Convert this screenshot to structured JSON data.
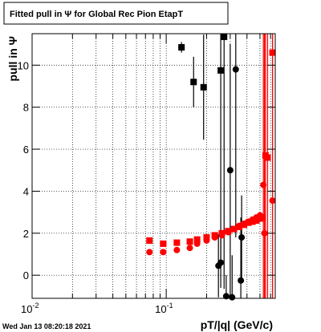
{
  "header": {
    "title": "Fitted pull in  Ψ  for Global Rec Pion EtapT"
  },
  "footer": {
    "timestamp": "Wed Jan 13 08:20:18 2021"
  },
  "chart_data": {
    "type": "scatter",
    "title": "Fitted pull in  Ψ  for Global Rec Pion EtapT",
    "xlabel": "pT/|q| (GeV/c)",
    "ylabel": "pull in  Ψ",
    "xscale": "log",
    "xlim": [
      0.01,
      0.65
    ],
    "ylim": [
      -1.1,
      11.5
    ],
    "grid": true,
    "x_tick_labels": [
      {
        "value": 0.01,
        "base": "10",
        "exp": "-2"
      },
      {
        "value": 0.1,
        "base": "10",
        "exp": "-1"
      }
    ],
    "y_ticks": [
      0,
      2,
      4,
      6,
      8,
      10
    ],
    "colors": {
      "black": "#000000",
      "red": "#ff0000"
    },
    "series": [
      {
        "marker": "square",
        "color": "#000000",
        "points": [
          {
            "x": 0.13,
            "y": 10.85,
            "yerr": 0.25,
            "xerr": 0.007
          },
          {
            "x": 0.16,
            "y": 9.2,
            "yerr": 1.2
          },
          {
            "x": 0.19,
            "y": 8.95,
            "yerr": 2.5
          },
          {
            "x": 0.255,
            "y": 9.75,
            "yerr": 9.0
          },
          {
            "x": 0.27,
            "y": 11.35,
            "yerr": 12.0
          }
        ]
      },
      {
        "marker": "circle",
        "color": "#000000",
        "points": [
          {
            "x": 0.245,
            "y": 0.45,
            "yerr": 1.5
          },
          {
            "x": 0.255,
            "y": 0.6,
            "yerr": 1.2
          },
          {
            "x": 0.28,
            "y": -1.0,
            "yerr": 1.0
          },
          {
            "x": 0.3,
            "y": 5.0,
            "yerr": 6.0
          },
          {
            "x": 0.31,
            "y": -1.05,
            "yerr": 2.0
          },
          {
            "x": 0.33,
            "y": 9.8,
            "yerr": 8.0
          },
          {
            "x": 0.36,
            "y": -0.25,
            "yerr": 3.0
          },
          {
            "x": 0.365,
            "y": 1.8,
            "yerr": 2.0
          }
        ]
      },
      {
        "marker": "square",
        "color": "#ff0000",
        "points": [
          {
            "x": 0.075,
            "y": 1.65
          },
          {
            "x": 0.095,
            "y": 1.5
          },
          {
            "x": 0.12,
            "y": 1.55
          },
          {
            "x": 0.15,
            "y": 1.6
          },
          {
            "x": 0.17,
            "y": 1.7
          },
          {
            "x": 0.2,
            "y": 1.8
          },
          {
            "x": 0.23,
            "y": 1.9
          },
          {
            "x": 0.26,
            "y": 2.0
          },
          {
            "x": 0.29,
            "y": 2.1
          },
          {
            "x": 0.32,
            "y": 2.2
          },
          {
            "x": 0.35,
            "y": 2.3
          },
          {
            "x": 0.38,
            "y": 2.4
          },
          {
            "x": 0.41,
            "y": 2.5
          },
          {
            "x": 0.44,
            "y": 2.55
          },
          {
            "x": 0.47,
            "y": 2.6
          },
          {
            "x": 0.5,
            "y": 2.7
          },
          {
            "x": 0.52,
            "y": 2.75
          },
          {
            "x": 0.55,
            "y": 5.7,
            "yerr": 12.0
          },
          {
            "x": 0.57,
            "y": 5.6,
            "yerr": 12.0
          },
          {
            "x": 0.62,
            "y": 10.6,
            "yerr": 12.0
          }
        ]
      },
      {
        "marker": "circle",
        "color": "#ff0000",
        "points": [
          {
            "x": 0.075,
            "y": 1.1
          },
          {
            "x": 0.095,
            "y": 1.1
          },
          {
            "x": 0.12,
            "y": 1.2
          },
          {
            "x": 0.15,
            "y": 1.3
          },
          {
            "x": 0.17,
            "y": 1.5
          },
          {
            "x": 0.2,
            "y": 1.65
          },
          {
            "x": 0.23,
            "y": 1.8
          },
          {
            "x": 0.26,
            "y": 1.9
          },
          {
            "x": 0.29,
            "y": 2.05
          },
          {
            "x": 0.32,
            "y": 2.2
          },
          {
            "x": 0.35,
            "y": 2.35
          },
          {
            "x": 0.38,
            "y": 2.45
          },
          {
            "x": 0.41,
            "y": 2.55
          },
          {
            "x": 0.44,
            "y": 2.65
          },
          {
            "x": 0.47,
            "y": 2.75
          },
          {
            "x": 0.5,
            "y": 2.85
          },
          {
            "x": 0.53,
            "y": 4.3,
            "yerr": 12.0
          },
          {
            "x": 0.54,
            "y": 2.0,
            "yerr": 12.0
          },
          {
            "x": 0.62,
            "y": 3.55,
            "yerr": 12.0
          }
        ]
      }
    ]
  }
}
